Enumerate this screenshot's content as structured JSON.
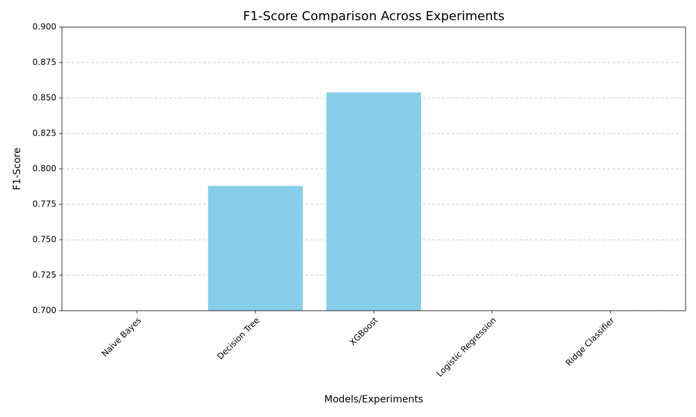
{
  "chart_data": {
    "type": "bar",
    "title": "F1-Score Comparison Across Experiments",
    "xlabel": "Models/Experiments",
    "ylabel": "F1-Score",
    "categories": [
      "Naive Bayes",
      "Decision Tree",
      "XGBoost",
      "Logistic Regression",
      "Ridge Classifier"
    ],
    "values": [
      null,
      0.788,
      0.854,
      null,
      null
    ],
    "color": "#87ceeb",
    "ylim": [
      0.7,
      0.9
    ],
    "yticks": [
      {
        "value": 0.7,
        "label": "0.700"
      },
      {
        "value": 0.725,
        "label": "0.725"
      },
      {
        "value": 0.75,
        "label": "0.750"
      },
      {
        "value": 0.775,
        "label": "0.775"
      },
      {
        "value": 0.8,
        "label": "0.800"
      },
      {
        "value": 0.825,
        "label": "0.825"
      },
      {
        "value": 0.85,
        "label": "0.850"
      },
      {
        "value": 0.875,
        "label": "0.875"
      },
      {
        "value": 0.9,
        "label": "0.900"
      }
    ],
    "grid": true
  }
}
